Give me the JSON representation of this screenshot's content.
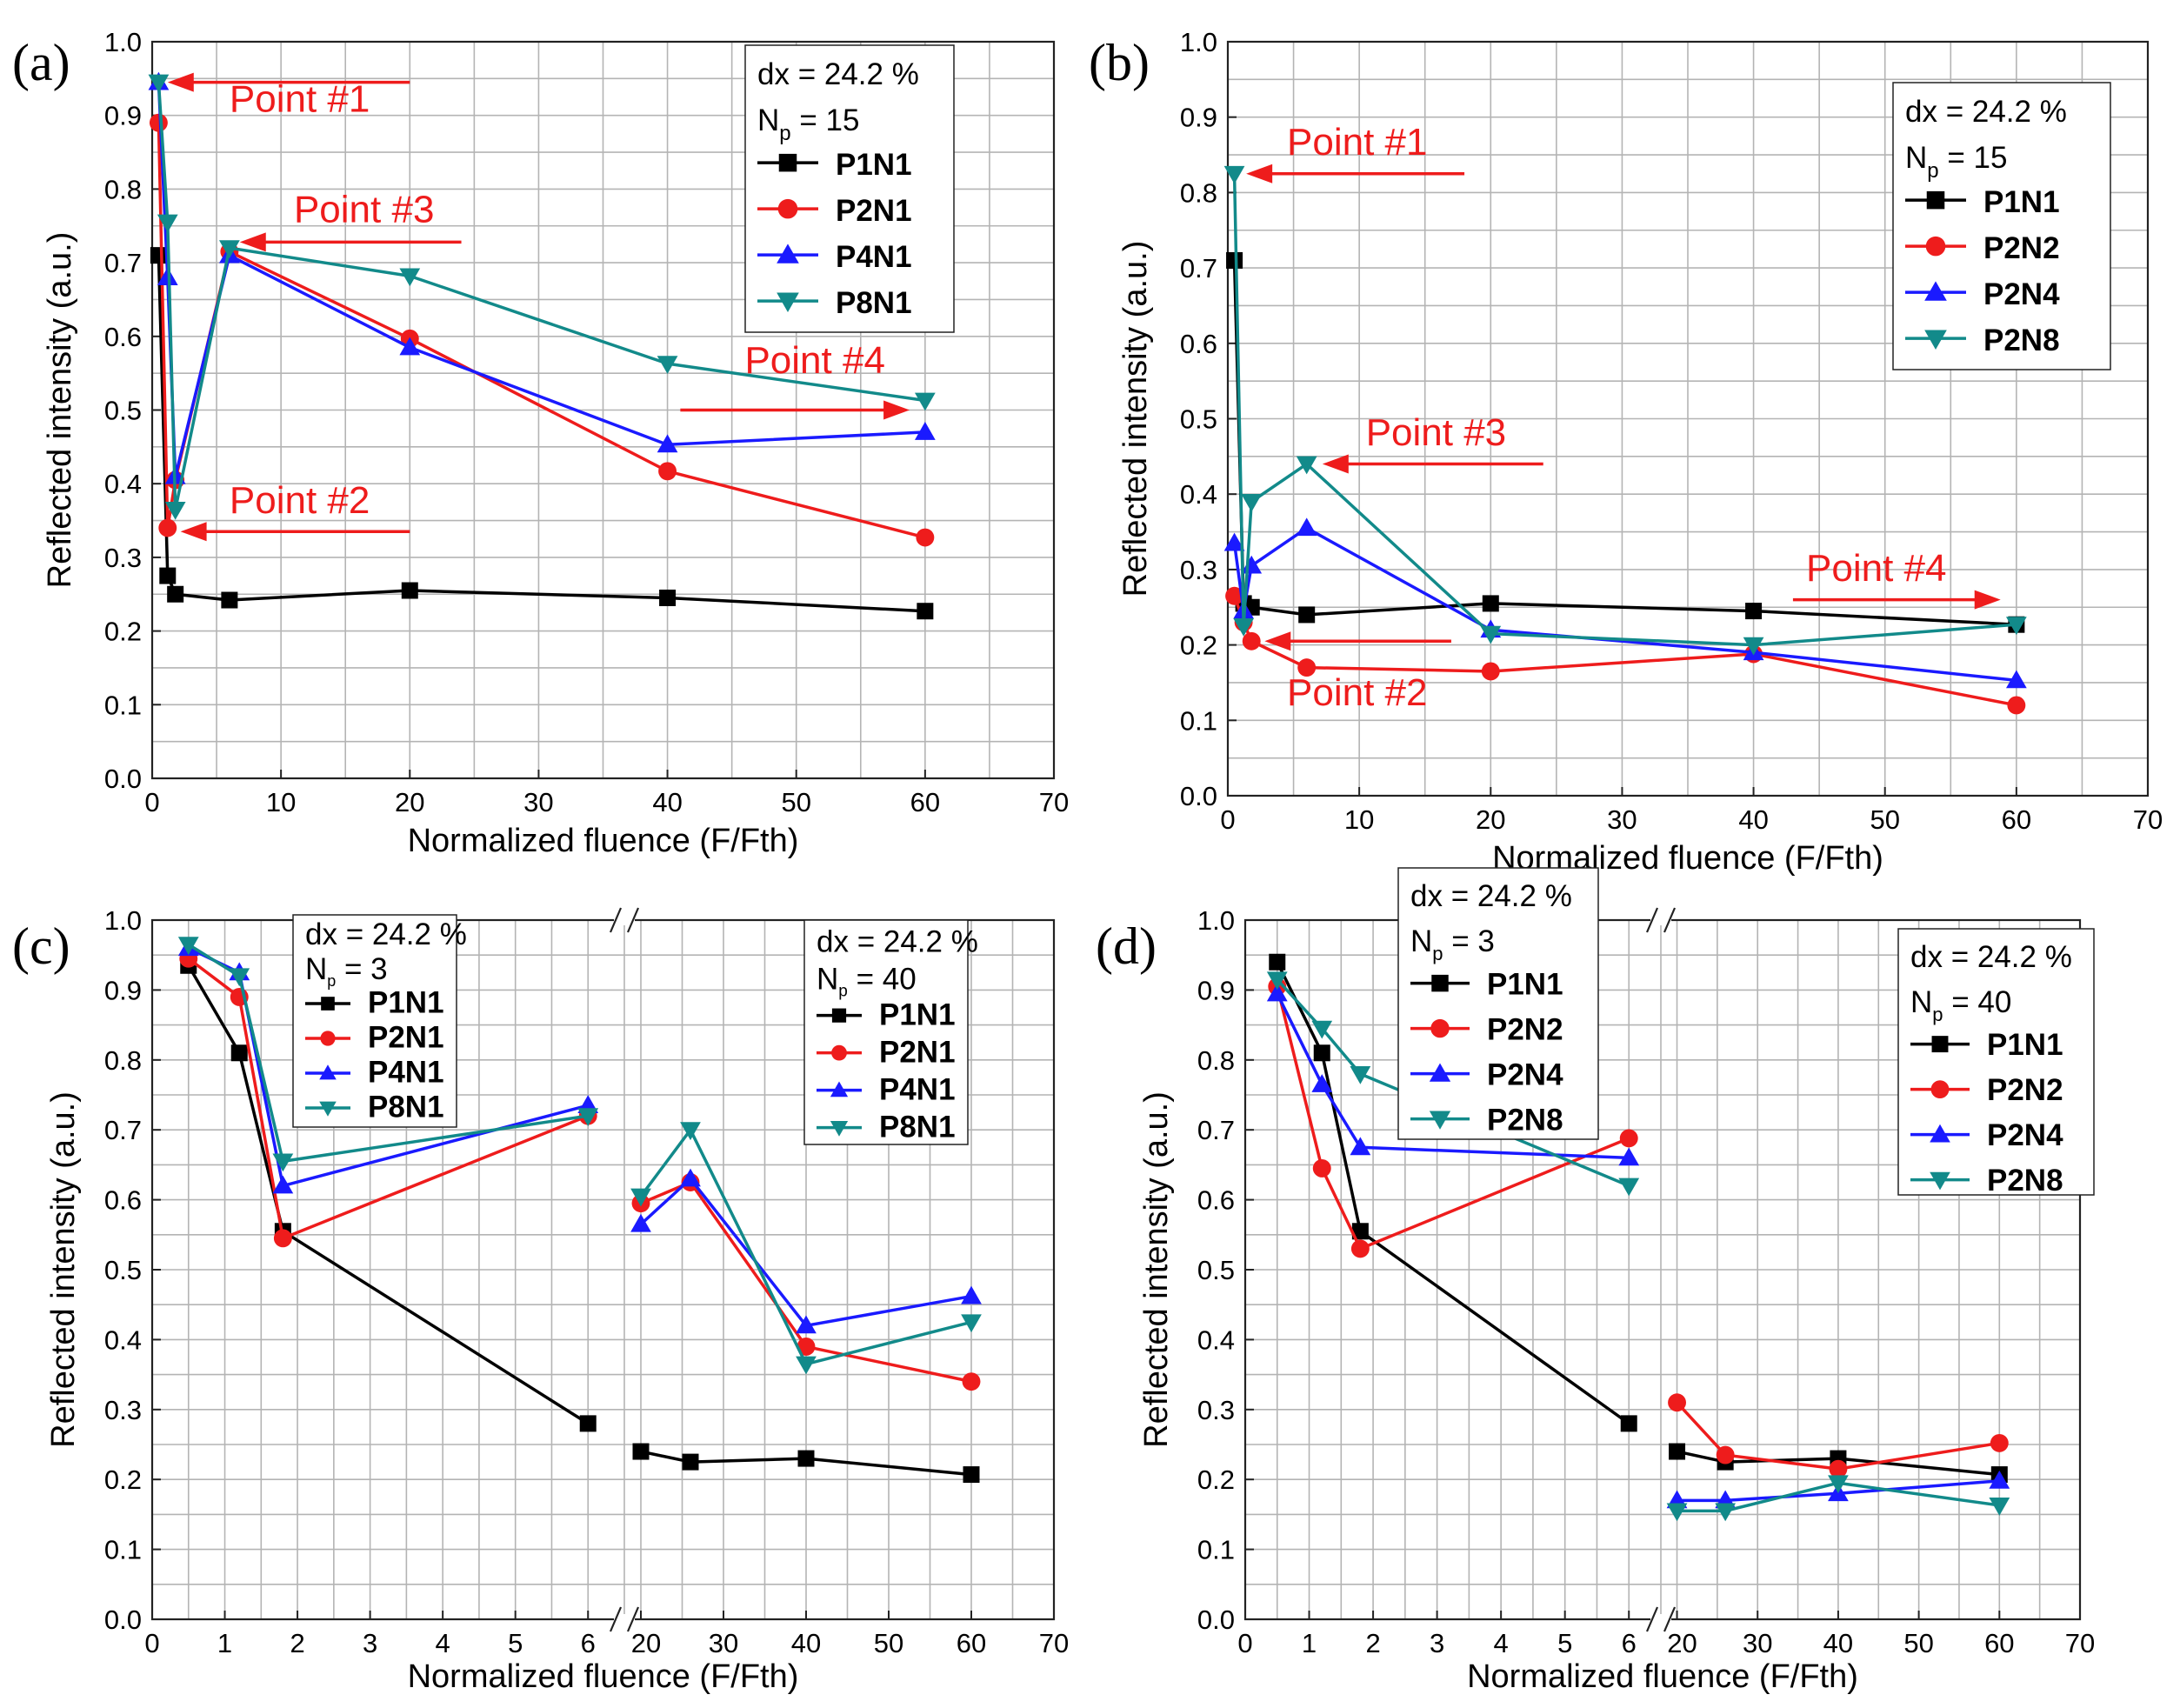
{
  "figure": {
    "series_colors": {
      "P1N1": "#000000",
      "P2N1": "#ee1c1c",
      "P4N1": "#1a1aff",
      "P8N1": "#128a8a",
      "P2N2": "#ee1c1c",
      "P2N4": "#1a1aff",
      "P2N8": "#128a8a"
    },
    "annotation_color": "#ee1c1c"
  },
  "chart_data": [
    {
      "id": "a",
      "panel_label": "(a)",
      "type": "line",
      "xlabel": "Normalized fluence (F/Fth)",
      "ylabel": "Reflected intensity (a.u.)",
      "xlim": [
        0,
        70
      ],
      "ylim": [
        0,
        1.0
      ],
      "x_ticks": [
        "0",
        "10",
        "20",
        "30",
        "40",
        "50",
        "60",
        "70"
      ],
      "y_ticks": [
        "0.0",
        "0.1",
        "0.2",
        "0.3",
        "0.4",
        "0.5",
        "0.6",
        "0.7",
        "0.8",
        "0.9",
        "1.0"
      ],
      "legend": {
        "line1": "dx = 24.2 %",
        "np_label": "N",
        "np_sub": "p",
        "np_value": " = 15",
        "placement": "top-right"
      },
      "x": [
        0.5,
        1.2,
        1.8,
        6,
        20,
        40,
        60
      ],
      "series": [
        {
          "name": "P1N1",
          "marker": "square",
          "values": [
            0.71,
            0.275,
            0.25,
            0.242,
            0.255,
            0.245,
            0.227
          ]
        },
        {
          "name": "P2N1",
          "marker": "circle",
          "values": [
            0.89,
            0.34,
            0.405,
            0.715,
            0.597,
            0.417,
            0.327
          ]
        },
        {
          "name": "P4N1",
          "marker": "triangle-up",
          "values": [
            0.945,
            0.68,
            0.41,
            0.71,
            0.585,
            0.453,
            0.47
          ]
        },
        {
          "name": "P8N1",
          "marker": "triangle-down",
          "values": [
            0.945,
            0.755,
            0.365,
            0.72,
            0.682,
            0.563,
            0.513
          ]
        }
      ],
      "annotations": [
        {
          "text": "Point #1",
          "at": [
            1.2,
            0.945
          ],
          "label_at": [
            6,
            0.905
          ],
          "shaft_from": [
            20,
            0.945
          ]
        },
        {
          "text": "Point #2",
          "at": [
            2.2,
            0.335
          ],
          "label_at": [
            6,
            0.36
          ],
          "shaft_from": [
            20,
            0.335
          ]
        },
        {
          "text": "Point #3",
          "at": [
            6.8,
            0.728
          ],
          "label_at": [
            11,
            0.755
          ],
          "shaft_from": [
            24,
            0.728
          ]
        },
        {
          "text": "Point #4",
          "at": [
            58.8,
            0.5
          ],
          "label_at": [
            46,
            0.55
          ],
          "shaft_from": [
            41,
            0.5
          ]
        }
      ]
    },
    {
      "id": "b",
      "panel_label": "(b)",
      "type": "line",
      "xlabel": "Normalized fluence (F/Fth)",
      "ylabel": "Reflected intensity (a.u.)",
      "xlim": [
        0,
        70
      ],
      "ylim": [
        0,
        1.0
      ],
      "x_ticks": [
        "0",
        "10",
        "20",
        "30",
        "40",
        "50",
        "60",
        "70"
      ],
      "y_ticks": [
        "0.0",
        "0.1",
        "0.2",
        "0.3",
        "0.4",
        "0.5",
        "0.6",
        "0.7",
        "0.8",
        "0.9",
        "1.0"
      ],
      "legend": {
        "line1": "dx = 24.2 %",
        "np_label": "N",
        "np_sub": "p",
        "np_value": " = 15",
        "placement": "top-right"
      },
      "x": [
        0.5,
        1.2,
        1.8,
        6,
        20,
        40,
        60
      ],
      "series": [
        {
          "name": "P1N1",
          "marker": "square",
          "values": [
            0.71,
            0.255,
            0.25,
            0.24,
            0.255,
            0.245,
            0.227
          ]
        },
        {
          "name": "P2N2",
          "marker": "circle",
          "values": [
            0.265,
            0.23,
            0.205,
            0.17,
            0.165,
            0.188,
            0.12
          ]
        },
        {
          "name": "P2N4",
          "marker": "triangle-up",
          "values": [
            0.335,
            0.245,
            0.305,
            0.355,
            0.22,
            0.19,
            0.153
          ]
        },
        {
          "name": "P2N8",
          "marker": "triangle-down",
          "values": [
            0.825,
            0.225,
            0.39,
            0.44,
            0.215,
            0.2,
            0.227
          ]
        }
      ],
      "annotations": [
        {
          "text": "Point #1",
          "at": [
            1.4,
            0.825
          ],
          "label_at": [
            4.5,
            0.85
          ],
          "shaft_from": [
            18,
            0.825
          ]
        },
        {
          "text": "Point #2",
          "at": [
            2.8,
            0.205
          ],
          "label_at": [
            4.5,
            0.12
          ],
          "shaft_from": [
            17,
            0.205
          ]
        },
        {
          "text": "Point #3",
          "at": [
            7.2,
            0.44
          ],
          "label_at": [
            10.5,
            0.465
          ],
          "shaft_from": [
            24,
            0.44
          ]
        },
        {
          "text": "Point #4",
          "at": [
            58.8,
            0.26
          ],
          "label_at": [
            44,
            0.285
          ],
          "shaft_from": [
            43,
            0.26
          ]
        }
      ]
    },
    {
      "id": "c",
      "panel_label": "(c)",
      "type": "line",
      "broken_axis": true,
      "break_mark": "//",
      "xlabel": "Normalized fluence (F/Fth)",
      "ylabel": "Reflected intensity (a.u.)",
      "xlim_left": [
        0,
        6.5
      ],
      "xlim_right": [
        18,
        70
      ],
      "ylim": [
        0,
        1.0
      ],
      "x_ticks_left": [
        "0",
        "1",
        "2",
        "3",
        "4",
        "5",
        "6"
      ],
      "x_ticks_right": [
        "20",
        "30",
        "40",
        "50",
        "60",
        "70"
      ],
      "y_ticks": [
        "0.0",
        "0.1",
        "0.2",
        "0.3",
        "0.4",
        "0.5",
        "0.6",
        "0.7",
        "0.8",
        "0.9",
        "1.0"
      ],
      "legend_left": {
        "line1": "dx = 24.2 %",
        "np_label": "N",
        "np_sub": "p",
        "np_value": " = 3"
      },
      "legend_right": {
        "line1": "dx = 24.2 %",
        "np_label": "N",
        "np_sub": "p",
        "np_value": " = 40"
      },
      "x_left": [
        0.5,
        1.2,
        1.8,
        6
      ],
      "x_right": [
        20,
        26,
        40,
        60
      ],
      "series": [
        {
          "name": "P1N1",
          "marker": "square",
          "values_left": [
            0.935,
            0.81,
            0.555,
            0.28
          ],
          "values_right": [
            0.24,
            0.225,
            0.23,
            0.207
          ]
        },
        {
          "name": "P2N1",
          "marker": "circle",
          "values_left": [
            0.945,
            0.89,
            0.545,
            0.72
          ],
          "values_right": [
            0.595,
            0.625,
            0.39,
            0.34
          ]
        },
        {
          "name": "P4N1",
          "marker": "triangle-up",
          "values_left": [
            0.96,
            0.925,
            0.62,
            0.735
          ],
          "values_right": [
            0.565,
            0.63,
            0.42,
            0.462
          ]
        },
        {
          "name": "P8N1",
          "marker": "triangle-down",
          "values_left": [
            0.965,
            0.92,
            0.655,
            0.72
          ],
          "values_right": [
            0.605,
            0.7,
            0.365,
            0.425
          ]
        }
      ]
    },
    {
      "id": "d",
      "panel_label": "(d)",
      "type": "line",
      "broken_axis": true,
      "break_mark": "//",
      "xlabel": "Normalized fluence (F/Fth)",
      "ylabel": "Reflected intensity (a.u.)",
      "xlim_left": [
        0,
        6.5
      ],
      "xlim_right": [
        18,
        70
      ],
      "ylim": [
        0,
        1.0
      ],
      "x_ticks_left": [
        "0",
        "1",
        "2",
        "3",
        "4",
        "5",
        "6"
      ],
      "x_ticks_right": [
        "20",
        "30",
        "40",
        "50",
        "60",
        "70"
      ],
      "y_ticks": [
        "0.0",
        "0.1",
        "0.2",
        "0.3",
        "0.4",
        "0.5",
        "0.6",
        "0.7",
        "0.8",
        "0.9",
        "1.0"
      ],
      "legend_left": {
        "line1": "dx = 24.2 %",
        "np_label": "N",
        "np_sub": "p",
        "np_value": " = 3"
      },
      "legend_right": {
        "line1": "dx = 24.2 %",
        "np_label": "N",
        "np_sub": "p",
        "np_value": " = 40"
      },
      "x_left": [
        0.5,
        1.2,
        1.8,
        6
      ],
      "x_right": [
        20,
        26,
        40,
        60
      ],
      "series": [
        {
          "name": "P1N1",
          "marker": "square",
          "values_left": [
            0.94,
            0.81,
            0.555,
            0.28
          ],
          "values_right": [
            0.24,
            0.225,
            0.23,
            0.207
          ]
        },
        {
          "name": "P2N2",
          "marker": "circle",
          "values_left": [
            0.905,
            0.645,
            0.53,
            0.688
          ],
          "values_right": [
            0.31,
            0.235,
            0.215,
            0.252
          ]
        },
        {
          "name": "P2N4",
          "marker": "triangle-up",
          "values_left": [
            0.895,
            0.765,
            0.675,
            0.66
          ],
          "values_right": [
            0.17,
            0.17,
            0.18,
            0.198
          ]
        },
        {
          "name": "P2N8",
          "marker": "triangle-down",
          "values_left": [
            0.915,
            0.845,
            0.78,
            0.62
          ],
          "values_right": [
            0.155,
            0.155,
            0.195,
            0.163
          ]
        }
      ]
    }
  ]
}
